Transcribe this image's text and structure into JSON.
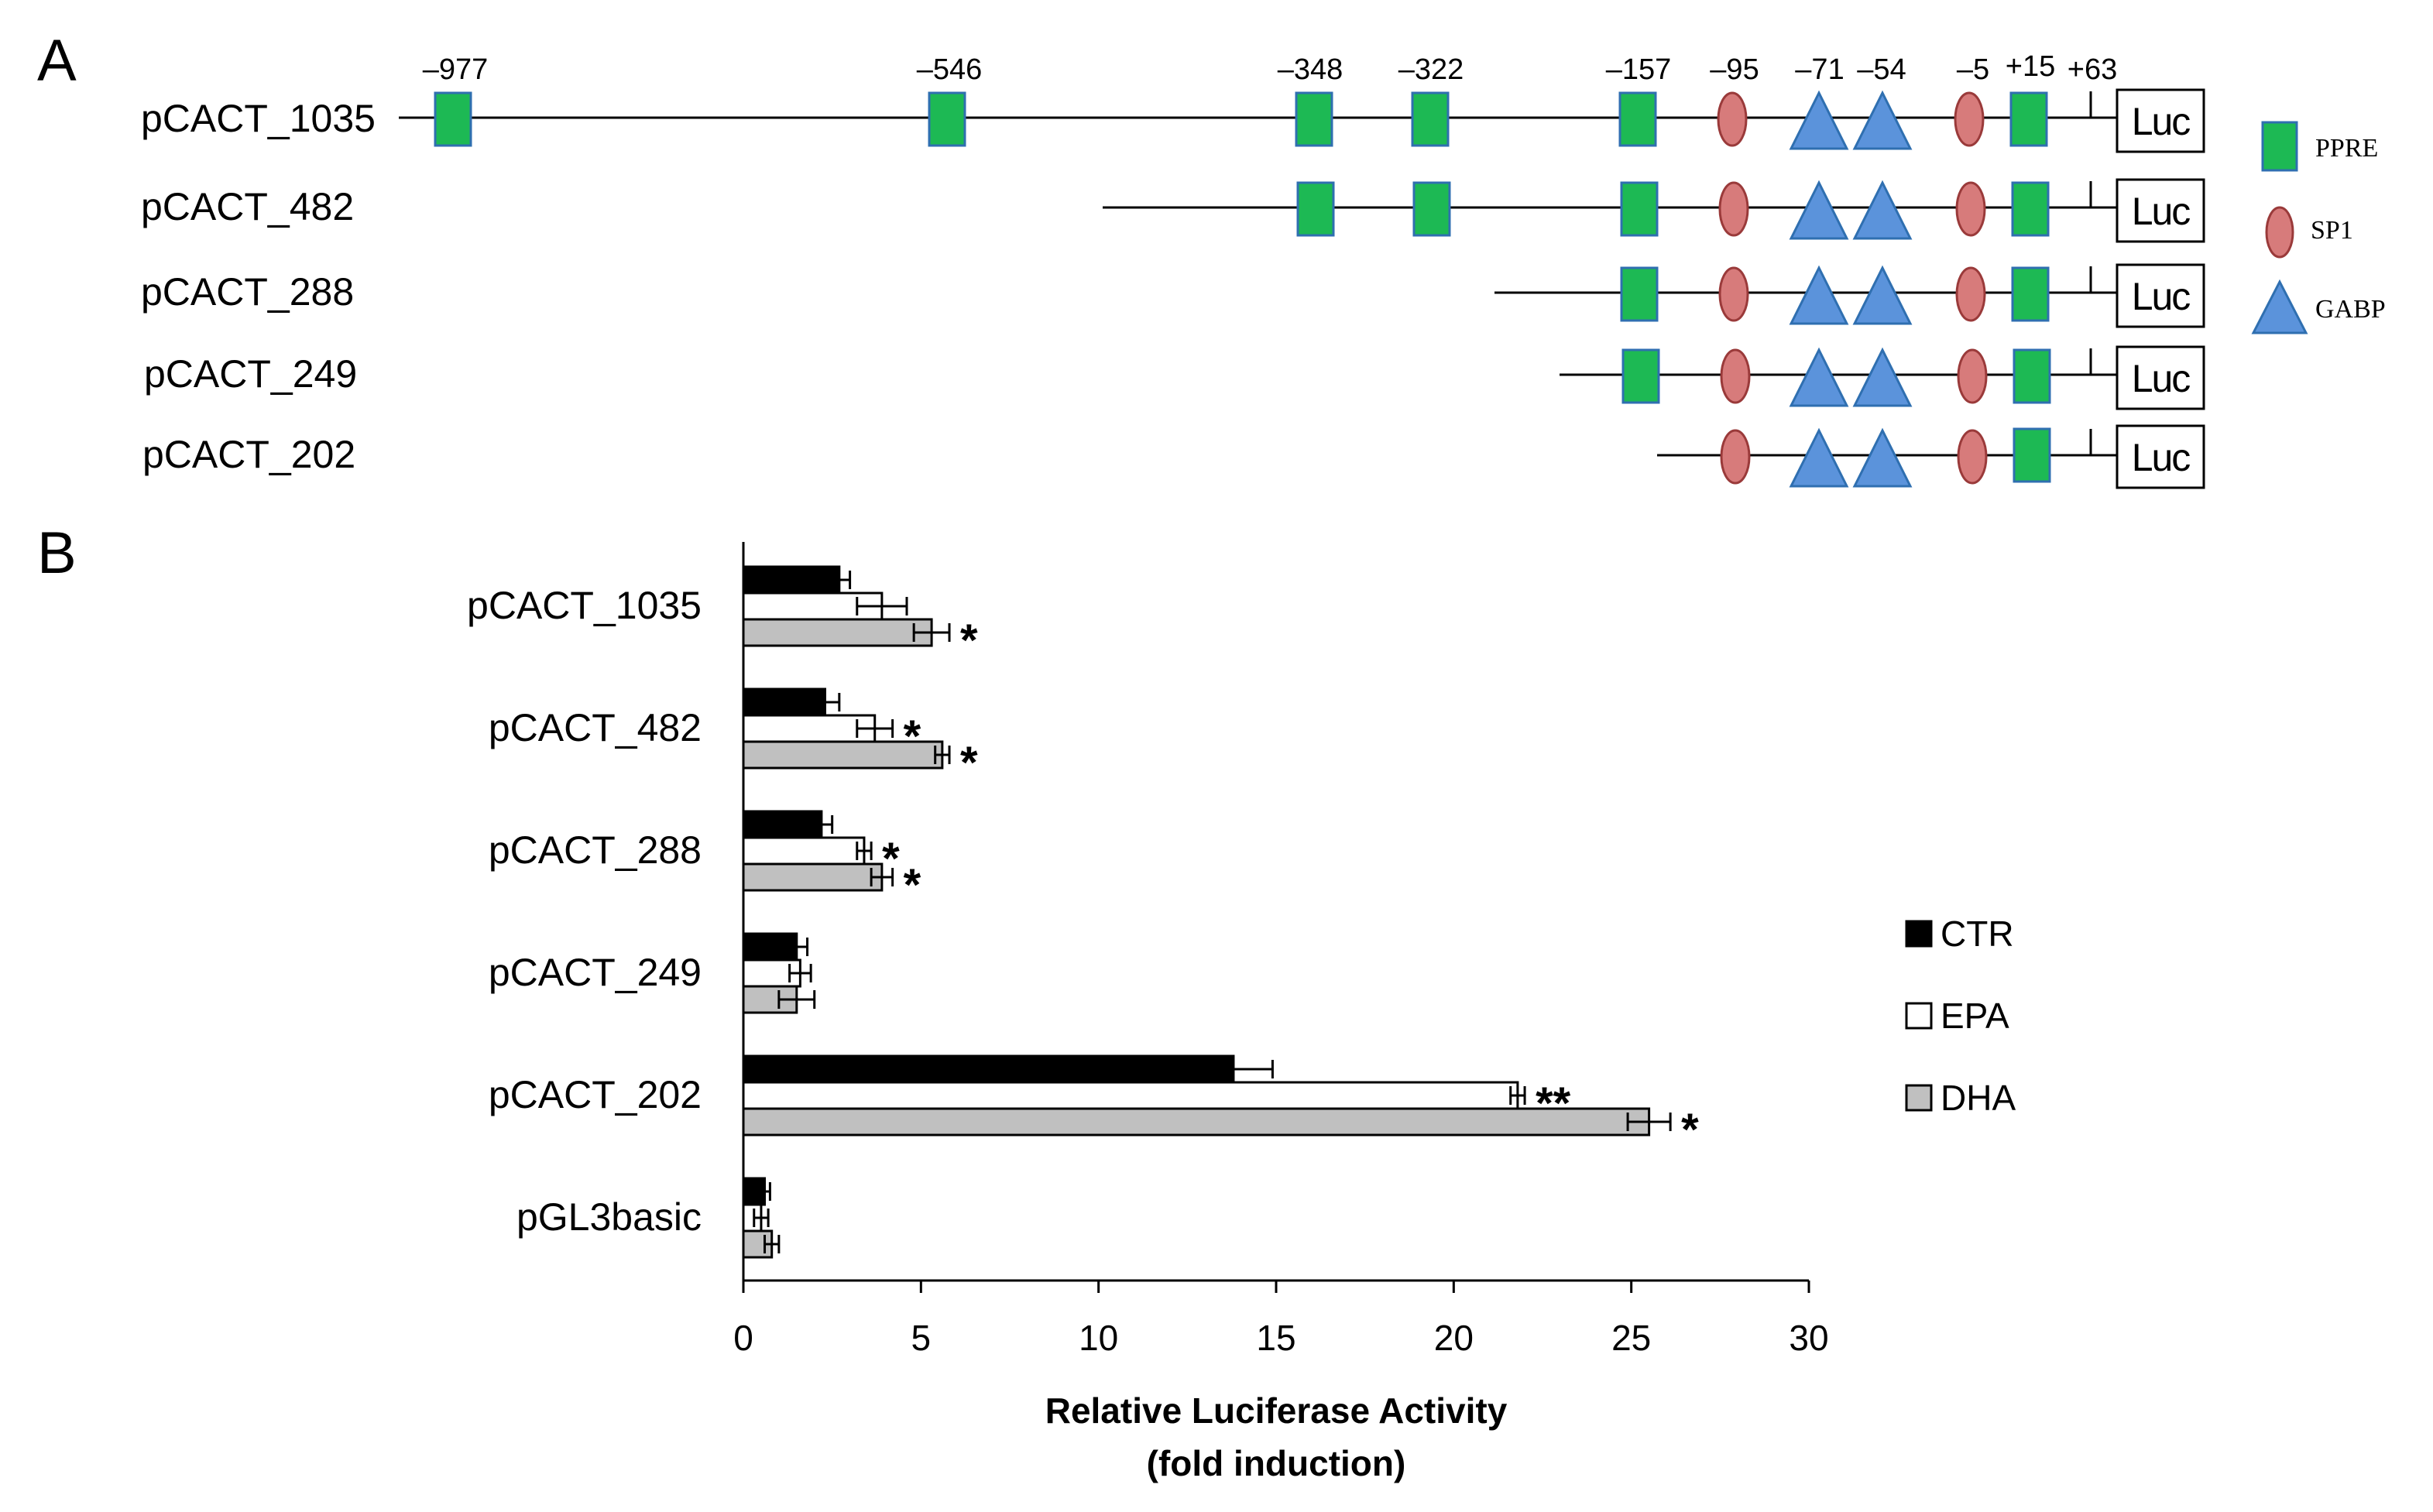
{
  "panel_a": {
    "letter": "A",
    "constructs": [
      "pCACT_1035",
      "pCACT_482",
      "pCACT_288",
      "pCACT_249",
      "pCACT_202"
    ],
    "positions": [
      "–977",
      "–546",
      "–348",
      "–322",
      "–157",
      "–95",
      "–71",
      "–54",
      "–5",
      "+15",
      "+63"
    ],
    "reporter_label": "Luc",
    "legend": [
      {
        "label": "PPRE",
        "shape": "square",
        "color": "#1db954"
      },
      {
        "label": "SP1",
        "shape": "ellipse",
        "color": "#d77b7b"
      },
      {
        "label": "GABP",
        "shape": "triangle",
        "color": "#5b93db"
      }
    ]
  },
  "panel_b": {
    "letter": "B"
  },
  "chart_data": {
    "type": "bar",
    "orientation": "horizontal",
    "categories": [
      "pCACT_1035",
      "pCACT_482",
      "pCACT_288",
      "pCACT_249",
      "pCACT_202",
      "pGL3basic"
    ],
    "series": [
      {
        "name": "CTR",
        "color": "#000000",
        "values": [
          2.7,
          2.3,
          2.2,
          1.5,
          13.8,
          0.6
        ],
        "errors": [
          0.3,
          0.4,
          0.3,
          0.3,
          1.1,
          0.15
        ],
        "stars": [
          "",
          "",
          "",
          "",
          "",
          ""
        ]
      },
      {
        "name": "EPA",
        "color": "#ffffff",
        "values": [
          3.9,
          3.7,
          3.4,
          1.6,
          21.8,
          0.5
        ],
        "errors": [
          0.7,
          0.5,
          0.2,
          0.3,
          0.2,
          0.2
        ],
        "stars": [
          "",
          "*",
          "*",
          "",
          "**",
          ""
        ]
      },
      {
        "name": "DHA",
        "color": "#c0c0c0",
        "values": [
          5.3,
          5.6,
          3.9,
          1.5,
          25.5,
          0.8
        ],
        "errors": [
          0.5,
          0.2,
          0.3,
          0.5,
          0.6,
          0.2
        ],
        "stars": [
          "*",
          "*",
          "*",
          "",
          "*",
          ""
        ]
      }
    ],
    "xlim": [
      0,
      30
    ],
    "xticks": [
      "0",
      "5",
      "10",
      "15",
      "20",
      "25",
      "30"
    ],
    "xlabel": [
      "Relative Luciferase Activity",
      "(fold induction)"
    ],
    "legend_position": "right"
  }
}
